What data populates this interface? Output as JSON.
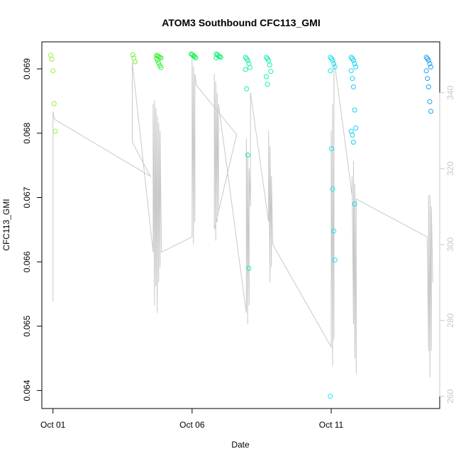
{
  "chart_data": {
    "type": "scatter",
    "title": "ATOM3 Southbound CFC113_GMI",
    "xlabel": "Date",
    "ylabel": "CFC113_GMI",
    "x_ticks": [
      "Oct 01",
      "Oct 06",
      "Oct 11"
    ],
    "x_tick_days": [
      1,
      6,
      11
    ],
    "xlim_days": [
      0.6,
      14.9
    ],
    "ylim": [
      0.06372,
      0.06942
    ],
    "y_ticks": [
      0.064,
      0.065,
      0.066,
      0.067,
      0.068,
      0.069
    ],
    "y_tick_labels": [
      "0.064",
      "0.065",
      "0.066",
      "0.067",
      "0.068",
      "0.069"
    ],
    "y2_ticks": [
      260,
      280,
      300,
      320,
      340
    ],
    "y2_tick_labels": [
      "260",
      "280",
      "300",
      "320",
      "340"
    ],
    "y2lim": [
      256.8,
      353.4
    ],
    "grid": false,
    "colors": {
      "points_palette": "day-gradient green to blue",
      "secondary_series": "#c8c8c8",
      "right_axis": "#c8c8c8"
    },
    "series": [
      {
        "kind": "points",
        "clusters": [
          {
            "day": 1.0,
            "color": "#9bf03c",
            "values": [
              0.06921,
              0.06915,
              0.06897,
              0.06846,
              0.06803
            ]
          },
          {
            "day": 3.95,
            "color": "#7af03a",
            "values": [
              0.06922,
              0.06917,
              0.06911
            ]
          },
          {
            "day": 4.8,
            "color": "#3cf03c",
            "values": [
              0.06921,
              0.0692,
              0.06919,
              0.06918,
              0.06917,
              0.06916,
              0.06913,
              0.06909,
              0.06905,
              0.06902
            ]
          },
          {
            "day": 6.05,
            "color": "#14f050",
            "values": [
              0.06923,
              0.06922,
              0.0692,
              0.06919,
              0.06917
            ]
          },
          {
            "day": 6.95,
            "color": "#14f07a",
            "values": [
              0.06923,
              0.06922,
              0.0692,
              0.06919,
              0.06918,
              0.06917
            ]
          },
          {
            "day": 8.0,
            "color": "#14f0a0",
            "values": [
              0.06918,
              0.06916,
              0.06913,
              0.06908,
              0.06902,
              0.06899,
              0.06869,
              0.06766,
              0.0659
            ]
          },
          {
            "day": 8.75,
            "color": "#14f0b4",
            "values": [
              0.06918,
              0.06916,
              0.06913,
              0.06906,
              0.06896,
              0.06888,
              0.06876
            ]
          },
          {
            "day": 11.05,
            "color": "#14e6f0",
            "values": [
              0.06918,
              0.06916,
              0.06913,
              0.06908,
              0.06903,
              0.06897,
              0.06776,
              0.06713,
              0.06648,
              0.06603,
              0.06391
            ]
          },
          {
            "day": 11.8,
            "color": "#14d2f0",
            "values": [
              0.06918,
              0.06916,
              0.06913,
              0.06908,
              0.06903,
              0.06897,
              0.06885,
              0.06872,
              0.06836,
              0.06808,
              0.06803,
              0.06797,
              0.06786,
              0.0669
            ]
          },
          {
            "day": 14.5,
            "color": "#1ea0f0",
            "values": [
              0.06918,
              0.06916,
              0.06913,
              0.06908,
              0.06903,
              0.06897,
              0.06885,
              0.06872,
              0.06849,
              0.06834
            ]
          }
        ]
      },
      {
        "kind": "line",
        "axis": "right",
        "points": [
          [
            1.0,
            285
          ],
          [
            1.0,
            335
          ],
          [
            1.05,
            333
          ],
          [
            4.5,
            318
          ],
          [
            3.85,
            327
          ],
          [
            3.85,
            348
          ],
          [
            4.6,
            298
          ],
          [
            4.6,
            337
          ],
          [
            4.65,
            284
          ],
          [
            4.65,
            338
          ],
          [
            4.7,
            289
          ],
          [
            4.7,
            336
          ],
          [
            4.75,
            282
          ],
          [
            4.75,
            334
          ],
          [
            4.8,
            290
          ],
          [
            4.8,
            332
          ],
          [
            4.85,
            294
          ],
          [
            4.85,
            330
          ],
          [
            4.9,
            298
          ],
          [
            6.0,
            302
          ],
          [
            6.0,
            349
          ],
          [
            6.05,
            300
          ],
          [
            6.05,
            347
          ],
          [
            6.1,
            306
          ],
          [
            6.1,
            345
          ],
          [
            6.15,
            342
          ],
          [
            7.6,
            329
          ],
          [
            6.8,
            304
          ],
          [
            6.8,
            345
          ],
          [
            6.85,
            301
          ],
          [
            6.85,
            343
          ],
          [
            6.9,
            306
          ],
          [
            6.9,
            340
          ],
          [
            6.95,
            309
          ],
          [
            6.95,
            337
          ],
          [
            7.95,
            282
          ],
          [
            7.95,
            328
          ],
          [
            8.0,
            279
          ],
          [
            8.0,
            324
          ],
          [
            8.05,
            284
          ],
          [
            8.05,
            320
          ],
          [
            8.1,
            310
          ],
          [
            8.1,
            340
          ],
          [
            8.75,
            306
          ],
          [
            8.75,
            330
          ],
          [
            8.8,
            290
          ],
          [
            8.8,
            326
          ],
          [
            8.85,
            294
          ],
          [
            8.85,
            318
          ],
          [
            8.9,
            300
          ],
          [
            11.0,
            273
          ],
          [
            11.0,
            330
          ],
          [
            11.05,
            268
          ],
          [
            11.05,
            337
          ],
          [
            11.1,
            275
          ],
          [
            11.1,
            349
          ],
          [
            11.75,
            313
          ],
          [
            11.75,
            318
          ],
          [
            11.8,
            279
          ],
          [
            11.8,
            322
          ],
          [
            11.85,
            270
          ],
          [
            11.85,
            316
          ],
          [
            11.9,
            266
          ],
          [
            11.9,
            312
          ],
          [
            14.45,
            302
          ],
          [
            14.5,
            272
          ],
          [
            14.5,
            313
          ],
          [
            14.55,
            265
          ],
          [
            14.55,
            313
          ],
          [
            14.6,
            272
          ],
          [
            14.6,
            310
          ],
          [
            14.65,
            290
          ]
        ]
      }
    ]
  }
}
